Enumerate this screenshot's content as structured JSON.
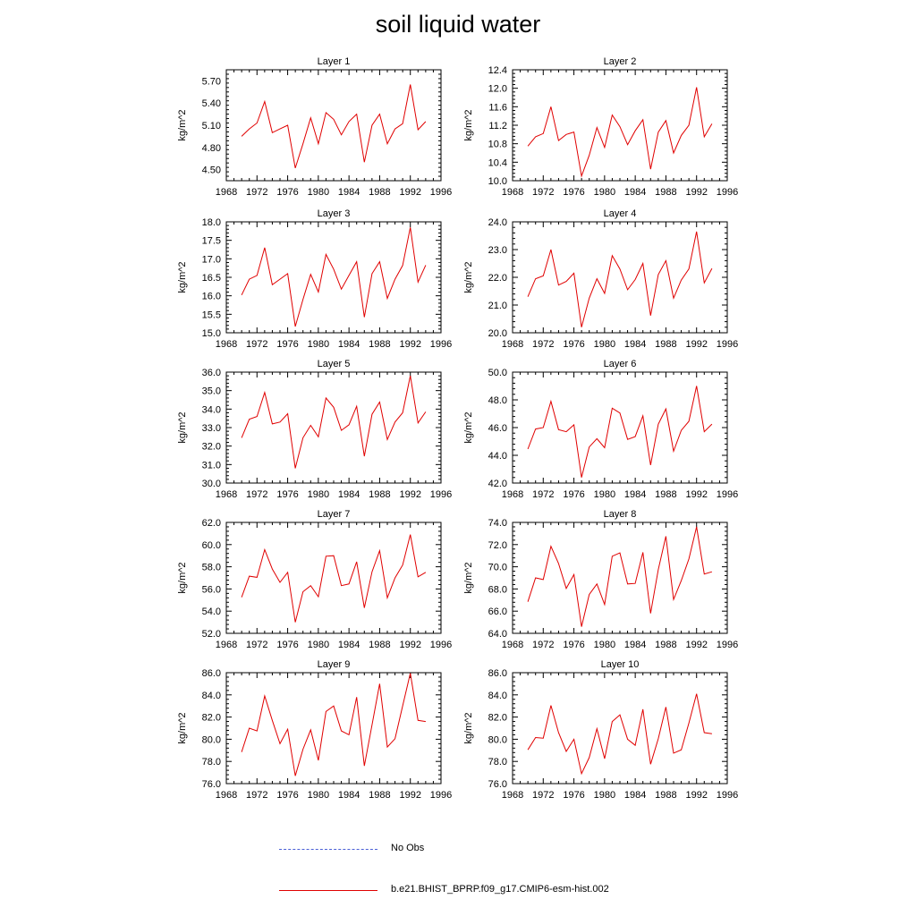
{
  "title": "soil liquid water",
  "colors": {
    "model_line": "#e00000",
    "obs_line": "#4a5fd6",
    "axis": "#000000"
  },
  "legend": [
    {
      "label": "No Obs",
      "style": "dashed",
      "color": "#4a5fd6"
    },
    {
      "label": "b.e21.BHIST_BPRP.f09_g17.CMIP6-esm-hist.002",
      "style": "solid",
      "color": "#e00000"
    }
  ],
  "chart_data": [
    {
      "type": "line",
      "title": "Layer 1",
      "ylabel": "kg/m^2",
      "xlim": [
        1968,
        1996
      ],
      "ylim": [
        4.35,
        5.85
      ],
      "xticks": [
        1968,
        1972,
        1976,
        1980,
        1984,
        1988,
        1992,
        1996
      ],
      "xtick_labels": [
        "1968",
        "1972",
        "1976",
        "1980",
        "1984",
        "1988",
        "1992",
        "1996"
      ],
      "yticks": [
        4.5,
        4.8,
        5.1,
        5.4,
        5.7
      ],
      "ytick_labels": [
        "4.50",
        "4.80",
        "5.10",
        "5.40",
        "5.70"
      ],
      "x": [
        1970,
        1971,
        1972,
        1973,
        1974,
        1975,
        1976,
        1977,
        1978,
        1979,
        1980,
        1981,
        1982,
        1983,
        1984,
        1985,
        1986,
        1987,
        1988,
        1989,
        1990,
        1991,
        1992,
        1993,
        1994
      ],
      "series": [
        {
          "values": [
            4.95,
            5.05,
            5.13,
            5.42,
            5.0,
            5.05,
            5.1,
            4.52,
            4.85,
            5.2,
            4.85,
            5.27,
            5.18,
            4.97,
            5.15,
            5.25,
            4.6,
            5.1,
            5.25,
            4.85,
            5.05,
            5.12,
            5.65,
            5.04,
            5.15
          ]
        }
      ]
    },
    {
      "type": "line",
      "title": "Layer 2",
      "ylabel": "kg/m^2",
      "xlim": [
        1968,
        1996
      ],
      "ylim": [
        10.0,
        12.4
      ],
      "xticks": [
        1968,
        1972,
        1976,
        1980,
        1984,
        1988,
        1992,
        1996
      ],
      "xtick_labels": [
        "1968",
        "1972",
        "1976",
        "1980",
        "1984",
        "1988",
        "1992",
        "1996"
      ],
      "yticks": [
        10.0,
        10.4,
        10.8,
        11.2,
        11.6,
        12.0,
        12.4
      ],
      "ytick_labels": [
        "10.0",
        "10.4",
        "10.8",
        "11.2",
        "11.6",
        "12.0",
        "12.4"
      ],
      "x": [
        1970,
        1971,
        1972,
        1973,
        1974,
        1975,
        1976,
        1977,
        1978,
        1979,
        1980,
        1981,
        1982,
        1983,
        1984,
        1985,
        1986,
        1987,
        1988,
        1989,
        1990,
        1991,
        1992,
        1993,
        1994
      ],
      "series": [
        {
          "values": [
            10.75,
            10.95,
            11.02,
            11.6,
            10.87,
            11.0,
            11.05,
            10.1,
            10.55,
            11.15,
            10.72,
            11.42,
            11.17,
            10.78,
            11.08,
            11.32,
            10.25,
            11.05,
            11.3,
            10.6,
            10.98,
            11.2,
            12.02,
            10.95,
            11.23
          ]
        }
      ]
    },
    {
      "type": "line",
      "title": "Layer 3",
      "ylabel": "kg/m^2",
      "xlim": [
        1968,
        1996
      ],
      "ylim": [
        15.0,
        18.0
      ],
      "xticks": [
        1968,
        1972,
        1976,
        1980,
        1984,
        1988,
        1992,
        1996
      ],
      "xtick_labels": [
        "1968",
        "1972",
        "1976",
        "1980",
        "1984",
        "1988",
        "1992",
        "1996"
      ],
      "yticks": [
        15.0,
        15.5,
        16.0,
        16.5,
        17.0,
        17.5,
        18.0
      ],
      "ytick_labels": [
        "15.0",
        "15.5",
        "16.0",
        "16.5",
        "17.0",
        "17.5",
        "18.0"
      ],
      "x": [
        1970,
        1971,
        1972,
        1973,
        1974,
        1975,
        1976,
        1977,
        1978,
        1979,
        1980,
        1981,
        1982,
        1983,
        1984,
        1985,
        1986,
        1987,
        1988,
        1989,
        1990,
        1991,
        1992,
        1993,
        1994
      ],
      "series": [
        {
          "values": [
            16.02,
            16.45,
            16.55,
            17.3,
            16.3,
            16.45,
            16.6,
            15.17,
            15.9,
            16.58,
            16.1,
            17.12,
            16.72,
            16.18,
            16.55,
            16.92,
            15.42,
            16.6,
            16.92,
            15.93,
            16.45,
            16.82,
            17.85,
            16.37,
            16.83
          ]
        }
      ]
    },
    {
      "type": "line",
      "title": "Layer 4",
      "ylabel": "kg/m^2",
      "xlim": [
        1968,
        1996
      ],
      "ylim": [
        20.0,
        24.0
      ],
      "xticks": [
        1968,
        1972,
        1976,
        1980,
        1984,
        1988,
        1992,
        1996
      ],
      "xtick_labels": [
        "1968",
        "1972",
        "1976",
        "1980",
        "1984",
        "1988",
        "1992",
        "1996"
      ],
      "yticks": [
        20.0,
        21.0,
        22.0,
        23.0,
        24.0
      ],
      "ytick_labels": [
        "20.0",
        "21.0",
        "22.0",
        "23.0",
        "24.0"
      ],
      "x": [
        1970,
        1971,
        1972,
        1973,
        1974,
        1975,
        1976,
        1977,
        1978,
        1979,
        1980,
        1981,
        1982,
        1983,
        1984,
        1985,
        1986,
        1987,
        1988,
        1989,
        1990,
        1991,
        1992,
        1993,
        1994
      ],
      "series": [
        {
          "values": [
            21.3,
            21.95,
            22.05,
            23.0,
            21.72,
            21.85,
            22.15,
            20.2,
            21.25,
            21.95,
            21.42,
            22.78,
            22.3,
            21.55,
            21.92,
            22.5,
            20.62,
            22.1,
            22.6,
            21.25,
            21.9,
            22.3,
            23.65,
            21.8,
            22.32
          ]
        }
      ]
    },
    {
      "type": "line",
      "title": "Layer 5",
      "ylabel": "kg/m^2",
      "xlim": [
        1968,
        1996
      ],
      "ylim": [
        30.0,
        36.0
      ],
      "xticks": [
        1968,
        1972,
        1976,
        1980,
        1984,
        1988,
        1992,
        1996
      ],
      "xtick_labels": [
        "1968",
        "1972",
        "1976",
        "1980",
        "1984",
        "1988",
        "1992",
        "1996"
      ],
      "yticks": [
        30.0,
        31.0,
        32.0,
        33.0,
        34.0,
        35.0,
        36.0
      ],
      "ytick_labels": [
        "30.0",
        "31.0",
        "32.0",
        "33.0",
        "34.0",
        "35.0",
        "36.0"
      ],
      "x": [
        1970,
        1971,
        1972,
        1973,
        1974,
        1975,
        1976,
        1977,
        1978,
        1979,
        1980,
        1981,
        1982,
        1983,
        1984,
        1985,
        1986,
        1987,
        1988,
        1989,
        1990,
        1991,
        1992,
        1993,
        1994
      ],
      "series": [
        {
          "values": [
            32.45,
            33.45,
            33.6,
            34.9,
            33.2,
            33.3,
            33.75,
            30.8,
            32.45,
            33.12,
            32.5,
            34.6,
            34.1,
            32.85,
            33.15,
            34.15,
            31.45,
            33.72,
            34.38,
            32.35,
            33.3,
            33.8,
            35.8,
            33.25,
            33.85
          ]
        }
      ]
    },
    {
      "type": "line",
      "title": "Layer 6",
      "ylabel": "kg/m^2",
      "xlim": [
        1968,
        1996
      ],
      "ylim": [
        42.0,
        50.0
      ],
      "xticks": [
        1968,
        1972,
        1976,
        1980,
        1984,
        1988,
        1992,
        1996
      ],
      "xtick_labels": [
        "1968",
        "1972",
        "1976",
        "1980",
        "1984",
        "1988",
        "1992",
        "1996"
      ],
      "yticks": [
        42.0,
        44.0,
        46.0,
        48.0,
        50.0
      ],
      "ytick_labels": [
        "42.0",
        "44.0",
        "46.0",
        "48.0",
        "50.0"
      ],
      "x": [
        1970,
        1971,
        1972,
        1973,
        1974,
        1975,
        1976,
        1977,
        1978,
        1979,
        1980,
        1981,
        1982,
        1983,
        1984,
        1985,
        1986,
        1987,
        1988,
        1989,
        1990,
        1991,
        1992,
        1993,
        1994
      ],
      "series": [
        {
          "values": [
            44.45,
            45.9,
            46.0,
            47.9,
            45.85,
            45.7,
            46.2,
            42.4,
            44.6,
            45.2,
            44.55,
            47.4,
            47.05,
            45.15,
            45.35,
            46.85,
            43.3,
            46.25,
            47.35,
            44.3,
            45.8,
            46.45,
            49.0,
            45.7,
            46.25
          ]
        }
      ]
    },
    {
      "type": "line",
      "title": "Layer 7",
      "ylabel": "kg/m^2",
      "xlim": [
        1968,
        1996
      ],
      "ylim": [
        52.0,
        62.0
      ],
      "xticks": [
        1968,
        1972,
        1976,
        1980,
        1984,
        1988,
        1992,
        1996
      ],
      "xtick_labels": [
        "1968",
        "1972",
        "1976",
        "1980",
        "1984",
        "1988",
        "1992",
        "1996"
      ],
      "yticks": [
        52.0,
        54.0,
        56.0,
        58.0,
        60.0,
        62.0
      ],
      "ytick_labels": [
        "52.0",
        "54.0",
        "56.0",
        "58.0",
        "60.0",
        "62.0"
      ],
      "x": [
        1970,
        1971,
        1972,
        1973,
        1974,
        1975,
        1976,
        1977,
        1978,
        1979,
        1980,
        1981,
        1982,
        1983,
        1984,
        1985,
        1986,
        1987,
        1988,
        1989,
        1990,
        1991,
        1992,
        1993,
        1994
      ],
      "series": [
        {
          "values": [
            55.25,
            57.15,
            57.05,
            59.55,
            57.8,
            56.6,
            57.5,
            53.0,
            55.75,
            56.3,
            55.3,
            58.95,
            59.0,
            56.3,
            56.45,
            58.45,
            54.3,
            57.55,
            59.45,
            55.2,
            57.0,
            58.15,
            60.9,
            57.1,
            57.5
          ]
        }
      ]
    },
    {
      "type": "line",
      "title": "Layer 8",
      "ylabel": "kg/m^2",
      "xlim": [
        1968,
        1996
      ],
      "ylim": [
        64.0,
        74.0
      ],
      "xticks": [
        1968,
        1972,
        1976,
        1980,
        1984,
        1988,
        1992,
        1996
      ],
      "xtick_labels": [
        "1968",
        "1972",
        "1976",
        "1980",
        "1984",
        "1988",
        "1992",
        "1996"
      ],
      "yticks": [
        64.0,
        66.0,
        68.0,
        70.0,
        72.0,
        74.0
      ],
      "ytick_labels": [
        "64.0",
        "66.0",
        "68.0",
        "70.0",
        "72.0",
        "74.0"
      ],
      "x": [
        1970,
        1971,
        1972,
        1973,
        1974,
        1975,
        1976,
        1977,
        1978,
        1979,
        1980,
        1981,
        1982,
        1983,
        1984,
        1985,
        1986,
        1987,
        1988,
        1989,
        1990,
        1991,
        1992,
        1993,
        1994
      ],
      "series": [
        {
          "values": [
            66.85,
            69.0,
            68.85,
            71.85,
            70.3,
            68.05,
            69.3,
            64.6,
            67.5,
            68.45,
            66.6,
            70.95,
            71.25,
            68.45,
            68.5,
            71.3,
            65.8,
            69.75,
            72.75,
            67.05,
            68.75,
            70.7,
            73.6,
            69.35,
            69.55
          ]
        }
      ]
    },
    {
      "type": "line",
      "title": "Layer 9",
      "ylabel": "kg/m^2",
      "xlim": [
        1968,
        1996
      ],
      "ylim": [
        76.0,
        86.0
      ],
      "xticks": [
        1968,
        1972,
        1976,
        1980,
        1984,
        1988,
        1992,
        1996
      ],
      "xtick_labels": [
        "1968",
        "1972",
        "1976",
        "1980",
        "1984",
        "1988",
        "1992",
        "1996"
      ],
      "yticks": [
        76.0,
        78.0,
        80.0,
        82.0,
        84.0,
        86.0
      ],
      "ytick_labels": [
        "76.0",
        "78.0",
        "80.0",
        "82.0",
        "84.0",
        "86.0"
      ],
      "x": [
        1970,
        1971,
        1972,
        1973,
        1974,
        1975,
        1976,
        1977,
        1978,
        1979,
        1980,
        1981,
        1982,
        1983,
        1984,
        1985,
        1986,
        1987,
        1988,
        1989,
        1990,
        1991,
        1992,
        1993,
        1994
      ],
      "series": [
        {
          "values": [
            78.85,
            81.0,
            80.75,
            83.9,
            81.7,
            79.6,
            80.9,
            76.7,
            79.1,
            80.85,
            78.1,
            82.5,
            83.0,
            80.75,
            80.4,
            83.8,
            77.6,
            81.3,
            85.0,
            79.3,
            80.05,
            83.0,
            85.95,
            81.7,
            81.6
          ]
        }
      ]
    },
    {
      "type": "line",
      "title": "Layer 10",
      "ylabel": "kg/m^2",
      "xlim": [
        1968,
        1996
      ],
      "ylim": [
        76.0,
        86.0
      ],
      "xticks": [
        1968,
        1972,
        1976,
        1980,
        1984,
        1988,
        1992,
        1996
      ],
      "xtick_labels": [
        "1968",
        "1972",
        "1976",
        "1980",
        "1984",
        "1988",
        "1992",
        "1996"
      ],
      "yticks": [
        76.0,
        78.0,
        80.0,
        82.0,
        84.0,
        86.0
      ],
      "ytick_labels": [
        "76.0",
        "78.0",
        "80.0",
        "82.0",
        "84.0",
        "86.0"
      ],
      "x": [
        1970,
        1971,
        1972,
        1973,
        1974,
        1975,
        1976,
        1977,
        1978,
        1979,
        1980,
        1981,
        1982,
        1983,
        1984,
        1985,
        1986,
        1987,
        1988,
        1989,
        1990,
        1991,
        1992,
        1993,
        1994
      ],
      "series": [
        {
          "values": [
            79.05,
            80.15,
            80.1,
            83.05,
            80.6,
            78.9,
            80.0,
            76.9,
            78.35,
            80.95,
            78.25,
            81.6,
            82.2,
            80.0,
            79.45,
            82.7,
            77.75,
            80.05,
            82.9,
            78.75,
            79.05,
            81.45,
            84.1,
            80.6,
            80.5
          ]
        }
      ]
    }
  ]
}
